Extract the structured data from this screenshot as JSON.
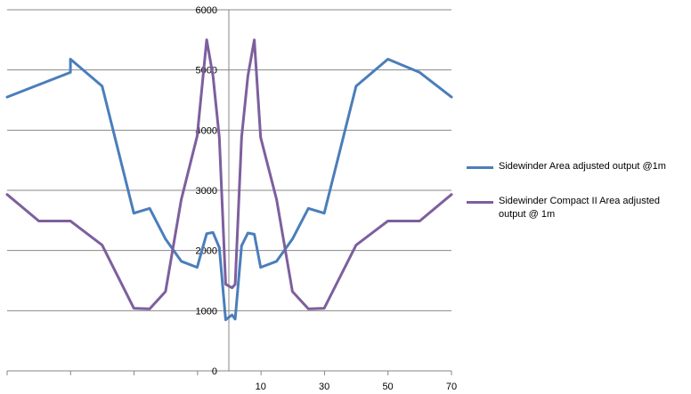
{
  "chart_data": {
    "type": "line",
    "title": "",
    "xlabel": "",
    "ylabel": "",
    "ylim": [
      0,
      6000
    ],
    "y_ticks": [
      0,
      1000,
      2000,
      3000,
      4000,
      5000,
      6000
    ],
    "x_tick_labels": [
      "10",
      "30",
      "50",
      "70"
    ],
    "x_tick_values": [
      10,
      30,
      50,
      70
    ],
    "xlim": [
      -70,
      70
    ],
    "grid": "horizontal",
    "legend_position": "right",
    "series": [
      {
        "name": "Sidewinder Area adjusted output @1m",
        "color": "#4a7ebb",
        "points": [
          [
            -70,
            4550
          ],
          [
            -50,
            4960
          ],
          [
            -50,
            4960
          ],
          [
            -50,
            5180
          ],
          [
            -40,
            4730
          ],
          [
            -30,
            2620
          ],
          [
            -25,
            2700
          ],
          [
            -20,
            2190
          ],
          [
            -15,
            1820
          ],
          [
            -10,
            1720
          ],
          [
            -7,
            2280
          ],
          [
            -5,
            2300
          ],
          [
            -3,
            2050
          ],
          [
            -1,
            850
          ],
          [
            1,
            930
          ],
          [
            2,
            860
          ],
          [
            4,
            2080
          ],
          [
            6,
            2290
          ],
          [
            8,
            2270
          ],
          [
            10,
            1720
          ],
          [
            15,
            1820
          ],
          [
            20,
            2190
          ],
          [
            25,
            2700
          ],
          [
            30,
            2620
          ],
          [
            40,
            4730
          ],
          [
            50,
            5180
          ],
          [
            60,
            4960
          ],
          [
            70,
            4550
          ]
        ]
      },
      {
        "name": "Sidewinder Compact II Area adjusted output @ 1m",
        "color": "#7d5f9e",
        "points": [
          [
            -70,
            2930
          ],
          [
            -60,
            2490
          ],
          [
            -50,
            2490
          ],
          [
            -40,
            2090
          ],
          [
            -30,
            1040
          ],
          [
            -25,
            1030
          ],
          [
            -20,
            1320
          ],
          [
            -15,
            2850
          ],
          [
            -10,
            3900
          ],
          [
            -7,
            5500
          ],
          [
            -5,
            4900
          ],
          [
            -3,
            3880
          ],
          [
            -1,
            1440
          ],
          [
            1,
            1380
          ],
          [
            2,
            1440
          ],
          [
            4,
            3880
          ],
          [
            6,
            4900
          ],
          [
            8,
            5500
          ],
          [
            10,
            3880
          ],
          [
            15,
            2850
          ],
          [
            20,
            1320
          ],
          [
            25,
            1030
          ],
          [
            30,
            1040
          ],
          [
            40,
            2090
          ],
          [
            50,
            2490
          ],
          [
            60,
            2490
          ],
          [
            70,
            2930
          ]
        ]
      }
    ]
  }
}
